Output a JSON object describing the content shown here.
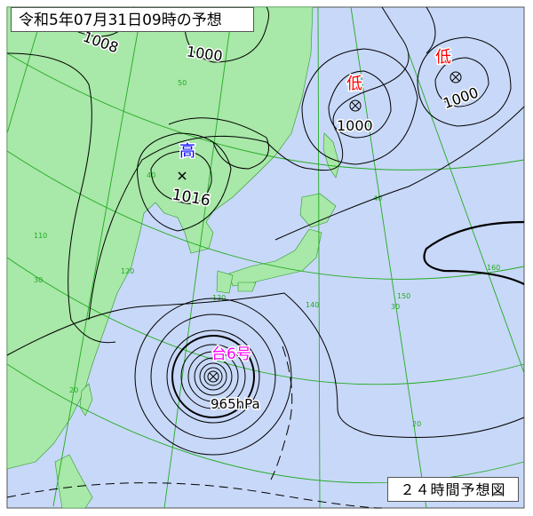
{
  "title": "令和5年07月31日09時の予想",
  "footer": "２４時間予想図",
  "colors": {
    "sea": "#c8d8f8",
    "land": "#a8e8a8",
    "grid": "#22aa22",
    "isobar": "#000000",
    "low": "#ff0000",
    "high": "#0000ff",
    "typhoon": "#ff00ff"
  },
  "systems": {
    "low1": {
      "kanji": "低",
      "pressure": "1000"
    },
    "low2": {
      "kanji": "低",
      "pressure": "1000"
    },
    "high1": {
      "kanji": "高",
      "pressure": "1016"
    },
    "typhoon": {
      "label": "台6号",
      "pressure": "965hPa"
    }
  },
  "isobar_labels": [
    "1008",
    "1000"
  ],
  "grid_labels": {
    "lat": [
      "50",
      "40",
      "30",
      "20",
      "40",
      "30",
      "20"
    ],
    "lon": [
      "110",
      "120",
      "130",
      "140",
      "150",
      "160"
    ]
  }
}
